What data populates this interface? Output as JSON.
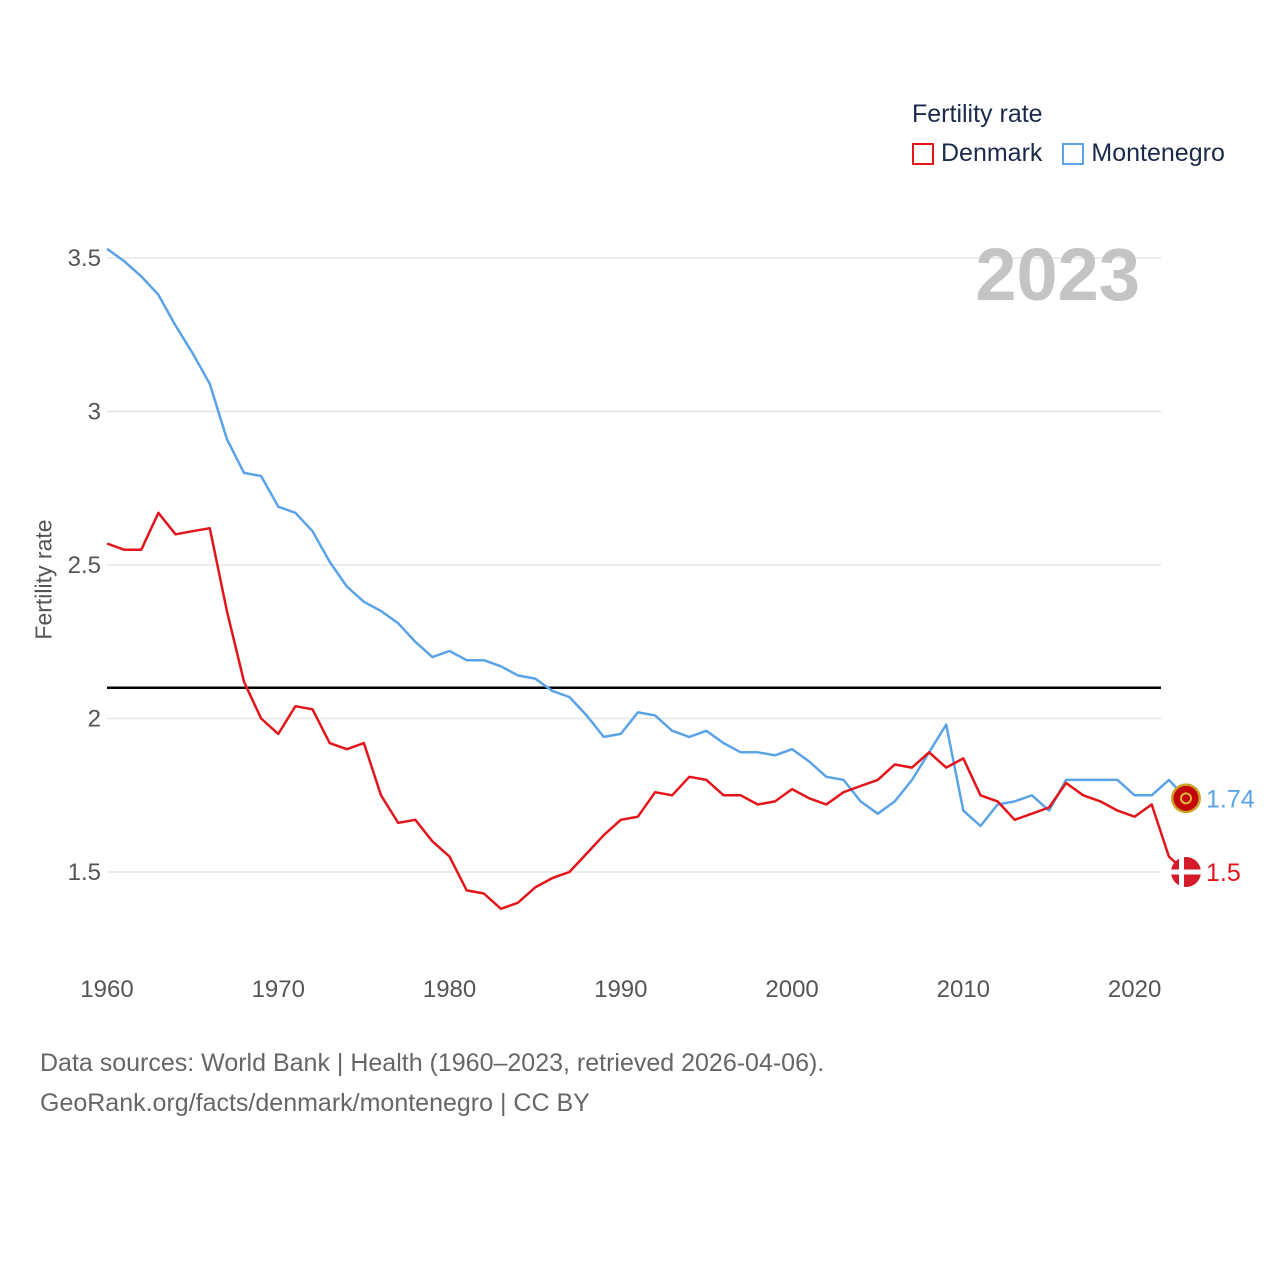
{
  "chart_data": {
    "type": "line",
    "title": "Fertility rate",
    "watermark_year": "2023",
    "ylabel": "Fertility rate",
    "xlabel": "",
    "xlim": [
      1960,
      2023
    ],
    "ylim": [
      1.3,
      3.6
    ],
    "x_ticks": [
      1960,
      1970,
      1980,
      1990,
      2000,
      2010,
      2020
    ],
    "y_ticks": [
      {
        "value": 1.5,
        "label": "1.5"
      },
      {
        "value": 2,
        "label": "2"
      },
      {
        "value": 2.5,
        "label": "2.5"
      },
      {
        "value": 3,
        "label": "3"
      },
      {
        "value": 3.5,
        "label": "3.5"
      }
    ],
    "reference_line": 2.1,
    "x": [
      1960,
      1961,
      1962,
      1963,
      1964,
      1965,
      1966,
      1967,
      1968,
      1969,
      1970,
      1971,
      1972,
      1973,
      1974,
      1975,
      1976,
      1977,
      1978,
      1979,
      1980,
      1981,
      1982,
      1983,
      1984,
      1985,
      1986,
      1987,
      1988,
      1989,
      1990,
      1991,
      1992,
      1993,
      1994,
      1995,
      1996,
      1997,
      1998,
      1999,
      2000,
      2001,
      2002,
      2003,
      2004,
      2005,
      2006,
      2007,
      2008,
      2009,
      2010,
      2011,
      2012,
      2013,
      2014,
      2015,
      2016,
      2017,
      2018,
      2019,
      2020,
      2021,
      2022,
      2023
    ],
    "series": [
      {
        "name": "Denmark",
        "color": "#e3151a",
        "end_label": "1.5",
        "values": [
          2.57,
          2.55,
          2.55,
          2.67,
          2.6,
          2.61,
          2.62,
          2.35,
          2.12,
          2.0,
          1.95,
          2.04,
          2.03,
          1.92,
          1.9,
          1.92,
          1.75,
          1.66,
          1.67,
          1.6,
          1.55,
          1.44,
          1.43,
          1.38,
          1.4,
          1.45,
          1.48,
          1.5,
          1.56,
          1.62,
          1.67,
          1.68,
          1.76,
          1.75,
          1.81,
          1.8,
          1.75,
          1.75,
          1.72,
          1.73,
          1.77,
          1.74,
          1.72,
          1.76,
          1.78,
          1.8,
          1.85,
          1.84,
          1.89,
          1.84,
          1.87,
          1.75,
          1.73,
          1.67,
          1.69,
          1.71,
          1.79,
          1.75,
          1.73,
          1.7,
          1.68,
          1.72,
          1.55,
          1.5
        ]
      },
      {
        "name": "Montenegro",
        "color": "#5aa3e6",
        "end_label": "1.74",
        "values": [
          3.53,
          3.49,
          3.44,
          3.38,
          3.28,
          3.19,
          3.09,
          2.91,
          2.8,
          2.79,
          2.69,
          2.67,
          2.61,
          2.51,
          2.43,
          2.38,
          2.35,
          2.31,
          2.25,
          2.2,
          2.22,
          2.19,
          2.19,
          2.17,
          2.14,
          2.13,
          2.09,
          2.07,
          2.01,
          1.94,
          1.95,
          2.02,
          2.01,
          1.96,
          1.94,
          1.96,
          1.92,
          1.89,
          1.89,
          1.88,
          1.9,
          1.86,
          1.81,
          1.8,
          1.73,
          1.69,
          1.73,
          1.8,
          1.89,
          1.98,
          1.7,
          1.65,
          1.72,
          1.73,
          1.75,
          1.7,
          1.8,
          1.8,
          1.8,
          1.8,
          1.75,
          1.75,
          1.8,
          1.74
        ]
      }
    ]
  },
  "legend": {
    "title": "Fertility rate",
    "items": [
      "Denmark",
      "Montenegro"
    ]
  },
  "footer": {
    "line1": "Data sources: World Bank | Health (1960–2023, retrieved 2026-04-06).",
    "line2": "GeoRank.org/facts/denmark/montenegro | CC BY"
  },
  "colors": {
    "grid": "#e6e6e6",
    "axis_text": "#555555",
    "watermark": "#c4c4c4",
    "reference": "#000000"
  }
}
